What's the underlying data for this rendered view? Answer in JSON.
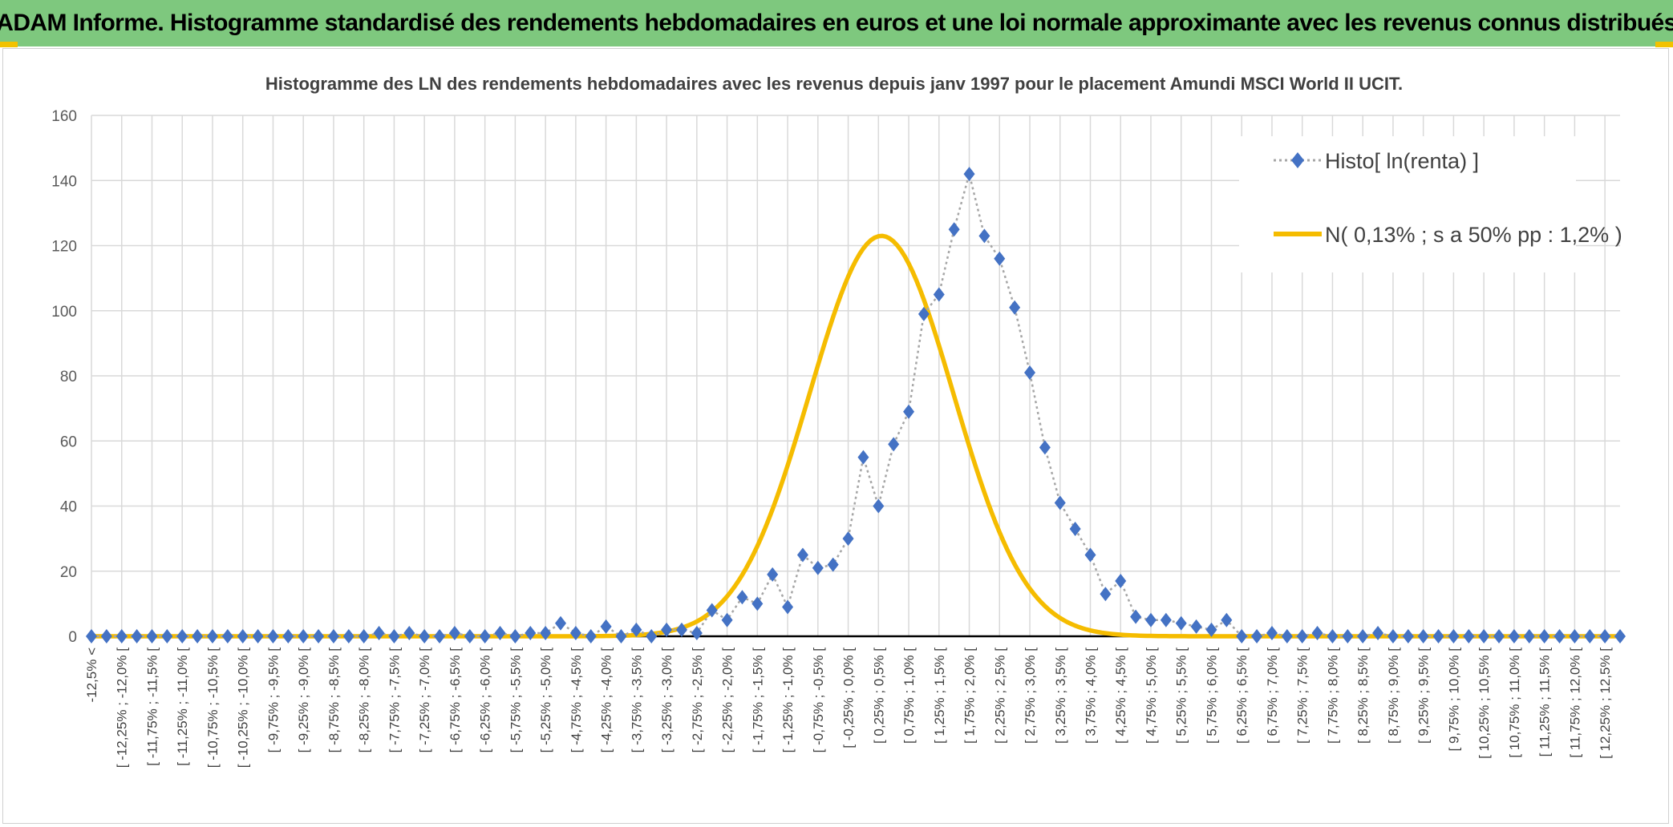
{
  "header": {
    "title": "ADAM Informe. Histogramme standardisé des rendements hebdomadaires en euros et une loi normale approximante avec les revenus connus distribués"
  },
  "colors": {
    "banner": "#7ec87e",
    "accent": "#f2c200",
    "histo_marker": "#4472c4",
    "histo_line": "#a6a6a6",
    "normal_curve": "#f5bc00",
    "grid": "#d9d9d9"
  },
  "chart_data": {
    "type": "line",
    "title": "Histogramme des LN des rendements hebdomadaires avec les revenus depuis janv 1997 pour le placement Amundi MSCI World II UCIT.",
    "xlabel": "",
    "ylabel": "",
    "ylim": [
      0,
      160
    ],
    "yticks": [
      0,
      20,
      40,
      60,
      80,
      100,
      120,
      140,
      160
    ],
    "grid": true,
    "legend_position": "top-right",
    "categories": [
      "-12,5% <",
      "[ -12,25% ; -12,0% [",
      "[ -11,75% ; -11,5% [",
      "[ -11,25% ; -11,0% [",
      "[ -10,75% ; -10,5% [",
      "[ -10,25% ; -10,0% [",
      "[ -9,75% ; -9,5% [",
      "[ -9,25% ; -9,0% [",
      "[ -8,75% ; -8,5% [",
      "[ -8,25% ; -8,0% [",
      "[ -7,75% ; -7,5% [",
      "[ -7,25% ; -7,0% [",
      "[ -6,75% ; -6,5% [",
      "[ -6,25% ; -6,0% [",
      "[ -5,75% ; -5,5% [",
      "[ -5,25% ; -5,0% [",
      "[ -4,75% ; -4,5% [",
      "[ -4,25% ; -4,0% [",
      "[ -3,75% ; -3,5% [",
      "[ -3,25% ; -3,0% [",
      "[ -2,75% ; -2,5% [",
      "[ -2,25% ; -2,0% [",
      "[ -1,75% ; -1,5% [",
      "[ -1,25% ; -1,0% [",
      "[ -0,75% ; -0,5% [",
      "[ -0,25% ; 0,0% [",
      "[ 0,25% ; 0,5% [",
      "[ 0,75% ; 1,0% [",
      "[ 1,25% ; 1,5% [",
      "[ 1,75% ; 2,0% [",
      "[ 2,25% ; 2,5% [",
      "[ 2,75% ; 3,0% [",
      "[ 3,25% ; 3,5% [",
      "[ 3,75% ; 4,0% [",
      "[ 4,25% ; 4,5% [",
      "[ 4,75% ; 5,0% [",
      "[ 5,25% ; 5,5% [",
      "[ 5,75% ; 6,0% [",
      "[ 6,25% ; 6,5% [",
      "[ 6,75% ; 7,0% [",
      "[ 7,25% ; 7,5% [",
      "[ 7,75% ; 8,0% [",
      "[ 8,25% ; 8,5% [",
      "[ 8,75% ; 9,0% [",
      "[ 9,25% ; 9,5% [",
      "[ 9,75% ; 10,0% [",
      "[ 10,25% ; 10,5% [",
      "[ 10,75% ; 11,0% [",
      "[ 11,25% ; 11,5% [",
      "[ 11,75% ; 12,0% [",
      "[ 12,25% ; 12,5% ["
    ],
    "histogram": {
      "name": "Histo[ ln(renta) ]",
      "values": [
        0,
        0,
        0,
        0,
        0,
        0,
        0,
        0,
        0,
        0,
        0,
        0,
        0,
        0,
        0,
        0,
        0,
        0,
        0,
        1,
        0,
        1,
        0,
        0,
        1,
        0,
        0,
        1,
        0,
        1,
        1,
        4,
        1,
        0,
        3,
        0,
        2,
        0,
        2,
        2,
        1,
        8,
        5,
        12,
        10,
        19,
        9,
        25,
        21,
        22,
        30,
        55,
        40,
        59,
        69,
        99,
        105,
        125,
        142,
        123,
        116,
        101,
        81,
        58,
        41,
        33,
        25,
        13,
        17,
        6,
        5,
        5,
        4,
        3,
        2,
        5,
        0,
        0,
        1,
        0,
        0,
        1,
        0,
        0,
        0,
        1,
        0,
        0,
        0,
        0,
        0,
        0,
        0,
        0,
        0,
        0,
        0,
        0,
        0,
        0,
        0,
        0
      ]
    },
    "normal_fit": {
      "name": "N( 0,13% ; s a 50% pp : 1,2% )",
      "mean_index": 52.2,
      "sigma_bins": 4.75,
      "peak": 123
    }
  }
}
